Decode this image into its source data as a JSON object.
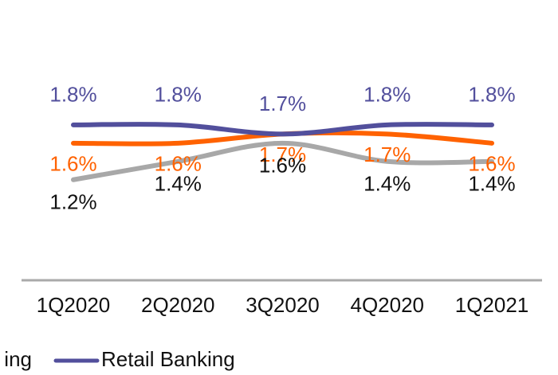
{
  "chart_data": {
    "type": "line",
    "categories": [
      "1Q2020",
      "2Q2020",
      "3Q2020",
      "4Q2020",
      "1Q2021"
    ],
    "ylim": [
      0.1,
      2.4
    ],
    "series": [
      {
        "name": "Retail Banking",
        "color": "#524f9c",
        "values": [
          1.8,
          1.8,
          1.7,
          1.8,
          1.8
        ],
        "value_labels": [
          "1.8%",
          "1.8%",
          "1.7%",
          "1.8%",
          "1.8%"
        ]
      },
      {
        "name": "ing",
        "color": "#ff6200",
        "values": [
          1.6,
          1.6,
          1.7,
          1.7,
          1.6
        ],
        "value_labels": [
          "1.6%",
          "1.6%",
          "1.7%",
          "1.7%",
          "1.6%"
        ]
      },
      {
        "color": "#a8a8a8",
        "values": [
          1.2,
          1.4,
          1.6,
          1.4,
          1.4
        ],
        "value_labels": [
          "1.2%",
          "1.4%",
          "1.6%",
          "1.4%",
          "1.4%"
        ]
      }
    ]
  }
}
